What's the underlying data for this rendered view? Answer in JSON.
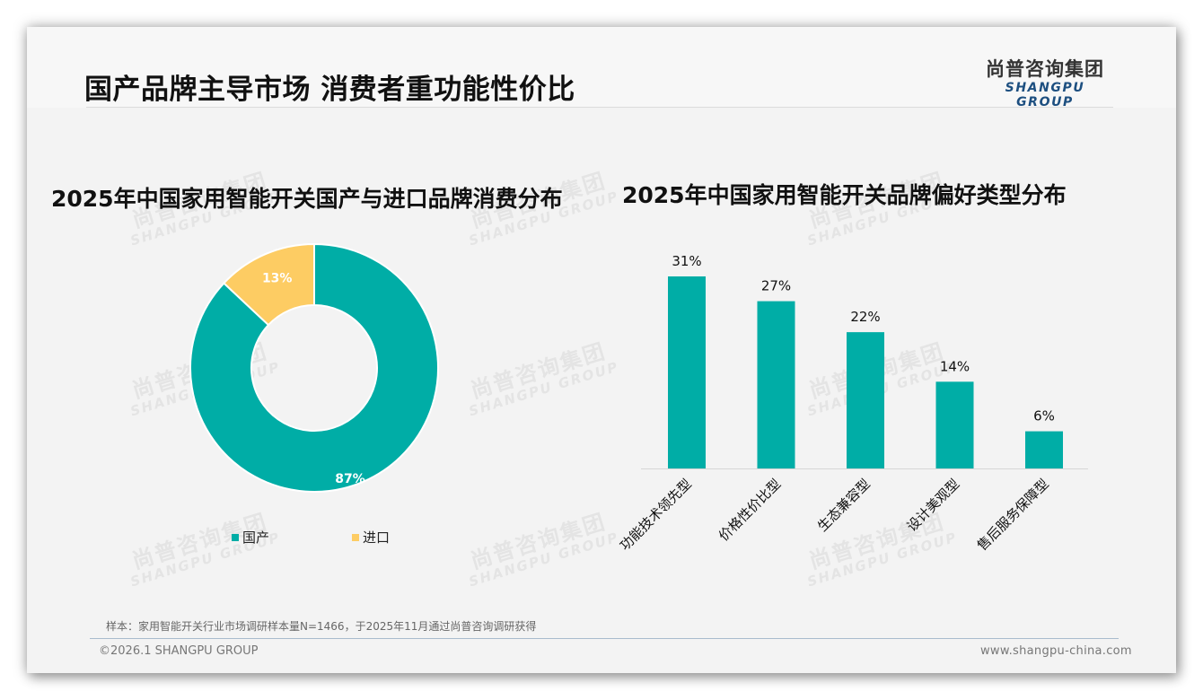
{
  "header": {
    "title": "国产品牌主导市场 消费者重功能性价比",
    "logo_cn": "尚普咨询集团",
    "logo_en": "SHANGPU GROUP"
  },
  "watermark": {
    "cn": "尚普咨询集团",
    "en": "SHANGPU GROUP"
  },
  "colors": {
    "teal": "#00ADA6",
    "yellow": "#FDCC63",
    "background": "#F3F3F3",
    "footer_rule": "#A9BCCD"
  },
  "left_chart": {
    "title": "2025年中国家用智能开关国产与进口品牌消费分布",
    "legend": [
      {
        "label": "国产",
        "color": "#00ADA6"
      },
      {
        "label": "进口",
        "color": "#FDCC63"
      }
    ],
    "labels": {
      "domestic": "87%",
      "imported": "13%"
    }
  },
  "right_chart": {
    "title": "2025年中国家用智能开关品牌偏好类型分布",
    "bars": [
      {
        "category": "功能技术领先型",
        "value": 31,
        "label": "31%"
      },
      {
        "category": "价格性价比型",
        "value": 27,
        "label": "27%"
      },
      {
        "category": "生态兼容型",
        "value": 22,
        "label": "22%"
      },
      {
        "category": "设计美观型",
        "value": 14,
        "label": "14%"
      },
      {
        "category": "售后服务保障型",
        "value": 6,
        "label": "6%"
      }
    ]
  },
  "chart_data": [
    {
      "type": "pie",
      "title": "2025年中国家用智能开关国产与进口品牌消费分布",
      "categories": [
        "国产",
        "进口"
      ],
      "values": [
        87,
        13
      ],
      "unit": "%",
      "style": "donut",
      "legend_position": "bottom"
    },
    {
      "type": "bar",
      "title": "2025年中国家用智能开关品牌偏好类型分布",
      "categories": [
        "功能技术领先型",
        "价格性价比型",
        "生态兼容型",
        "设计美观型",
        "售后服务保障型"
      ],
      "values": [
        31,
        27,
        22,
        14,
        6
      ],
      "unit": "%",
      "xlabel": "",
      "ylabel": "",
      "ylim": [
        0,
        31
      ],
      "grid": false,
      "data_labels": true
    }
  ],
  "footer": {
    "sample_note": "样本：家用智能开关行业市场调研样本量N=1466，于2025年11月通过尚普咨询调研获得",
    "copyright": "©2026.1 SHANGPU GROUP",
    "website": "www.shangpu-china.com"
  }
}
